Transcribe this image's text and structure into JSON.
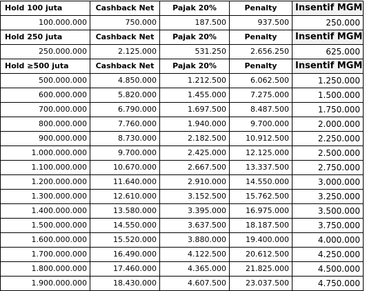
{
  "tiers": [
    {
      "header": [
        "Hold 100 juta",
        "Cashback Net",
        "Pajak 20%",
        "Penalty",
        "Insentif MGM"
      ],
      "rows": [
        [
          "100.000.000",
          "750.000",
          "187.500",
          "937.500",
          "250.000"
        ]
      ]
    },
    {
      "header": [
        "Hold 250 juta",
        "Cashback Net",
        "Pajak 20%",
        "Penalty",
        "Insentif MGM"
      ],
      "rows": [
        [
          "250.000.000",
          "2.125.000",
          "531.250",
          "2.656.250",
          "625.000"
        ]
      ]
    },
    {
      "header": [
        "Hold ≥500 juta",
        "Cashback Net",
        "Pajak 20%",
        "Penalty",
        "Insentif MGM"
      ],
      "rows": [
        [
          "500.000.000",
          "4.850.000",
          "1.212.500",
          "6.062.500",
          "1.250.000"
        ],
        [
          "600.000.000",
          "5.820.000",
          "1.455.000",
          "7.275.000",
          "1.500.000"
        ],
        [
          "700.000.000",
          "6.790.000",
          "1.697.500",
          "8.487.500",
          "1.750.000"
        ],
        [
          "800.000.000",
          "7.760.000",
          "1.940.000",
          "9.700.000",
          "2.000.000"
        ],
        [
          "900.000.000",
          "8.730.000",
          "2.182.500",
          "10.912.500",
          "2.250.000"
        ],
        [
          "1.000.000.000",
          "9.700.000",
          "2.425.000",
          "12.125.000",
          "2.500.000"
        ],
        [
          "1.100.000.000",
          "10.670.000",
          "2.667.500",
          "13.337.500",
          "2.750.000"
        ],
        [
          "1.200.000.000",
          "11.640.000",
          "2.910.000",
          "14.550.000",
          "3.000.000"
        ],
        [
          "1.300.000.000",
          "12.610.000",
          "3.152.500",
          "15.762.500",
          "3.250.000"
        ],
        [
          "1.400.000.000",
          "13.580.000",
          "3.395.000",
          "16.975.000",
          "3.500.000"
        ],
        [
          "1.500.000.000",
          "14.550.000",
          "3.637.500",
          "18.187.500",
          "3.750.000"
        ],
        [
          "1.600.000.000",
          "15.520.000",
          "3.880.000",
          "19.400.000",
          "4.000.000"
        ],
        [
          "1.700.000.000",
          "16.490.000",
          "4.122.500",
          "20.612.500",
          "4.250.000"
        ],
        [
          "1.800.000.000",
          "17.460.000",
          "4.365.000",
          "21.825.000",
          "4.500.000"
        ],
        [
          "1.900.000.000",
          "18.430.000",
          "4.607.500",
          "23.037.500",
          "4.750.000"
        ]
      ]
    }
  ]
}
